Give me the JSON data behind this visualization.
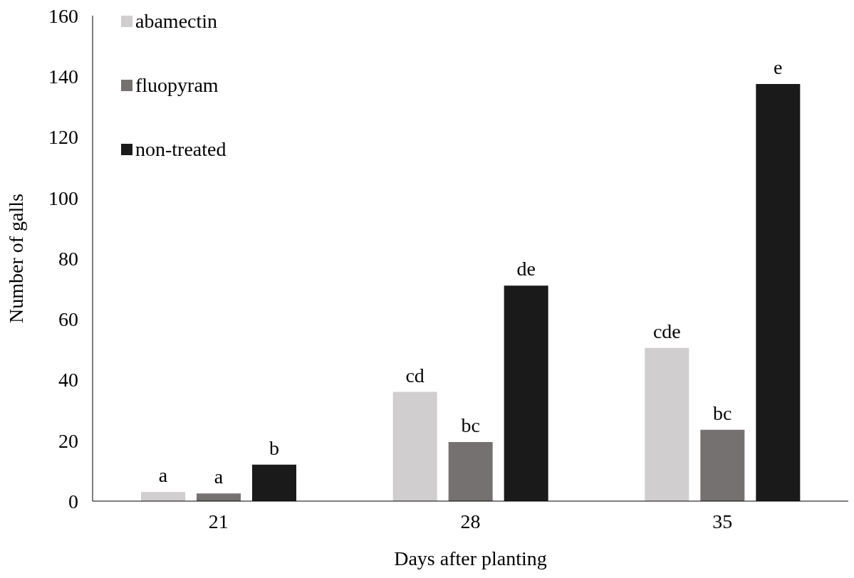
{
  "chart_data": {
    "type": "bar",
    "xlabel": "Days after planting",
    "ylabel": "Number of galls",
    "categories": [
      "21",
      "28",
      "35"
    ],
    "series": [
      {
        "name": "abamectin",
        "color": "#d0cece",
        "values": [
          3,
          36,
          50.5
        ],
        "value_labels": [
          "a",
          "cd",
          "cde"
        ]
      },
      {
        "name": "fluopyram",
        "color": "#767171",
        "values": [
          2.5,
          19.5,
          23.5
        ],
        "value_labels": [
          "a",
          "bc",
          "bc"
        ]
      },
      {
        "name": "non-treated",
        "color": "#1a1a1a",
        "values": [
          12,
          71,
          137.5
        ],
        "value_labels": [
          "b",
          "de",
          "e"
        ]
      }
    ],
    "ylim": [
      0,
      160
    ],
    "yticks": [
      0,
      20,
      40,
      60,
      80,
      100,
      120,
      140,
      160
    ],
    "grid": false,
    "legend": "top left"
  }
}
